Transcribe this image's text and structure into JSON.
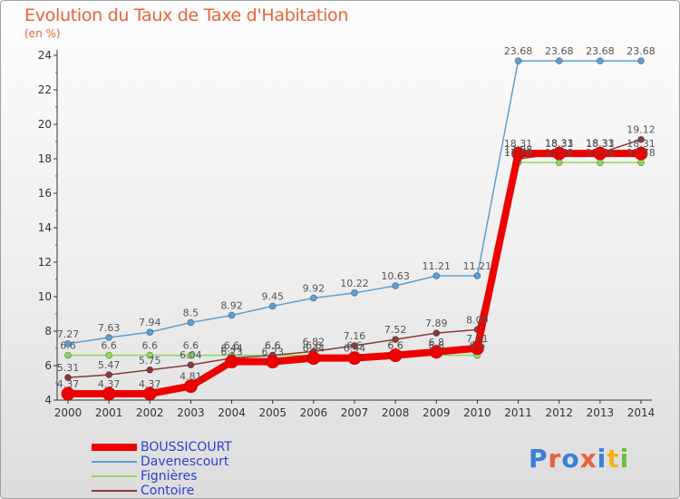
{
  "chart_data": {
    "type": "line",
    "title": "Evolution du Taux de Taxe d'Habitation",
    "unit_label": "(en %)",
    "xlabel": "",
    "ylabel": "",
    "x": [
      "2000",
      "2001",
      "2002",
      "2003",
      "2004",
      "2005",
      "2006",
      "2007",
      "2008",
      "2009",
      "2010",
      "2011",
      "2012",
      "2013",
      "2014"
    ],
    "ylim": [
      4,
      24
    ],
    "yticks": [
      "4",
      "6",
      "8",
      "10",
      "12",
      "14",
      "16",
      "18",
      "20",
      "22",
      "24"
    ],
    "grid": false,
    "legend_position": "bottom-left",
    "series": [
      {
        "name": "BOUSSICOURT",
        "color": "#ee0000",
        "values": [
          4.37,
          4.37,
          4.37,
          4.81,
          6.23,
          6.23,
          6.44,
          6.44,
          6.6,
          6.8,
          7.01,
          18.31,
          18.31,
          18.31,
          18.31
        ],
        "labels": [
          "4.37",
          "4.37",
          "4.37",
          "4.81",
          "6.23",
          "6.23",
          "6.44",
          "6.44",
          "6.6",
          "6.8",
          "7.01",
          "18.31",
          "18.31",
          "18.31",
          "18.31"
        ]
      },
      {
        "name": "Davenescourt",
        "color": "#5b9fd6",
        "values": [
          7.27,
          7.63,
          7.94,
          8.5,
          8.92,
          9.45,
          9.92,
          10.22,
          10.63,
          11.21,
          11.21,
          23.68,
          23.68,
          23.68,
          23.68
        ],
        "labels": [
          "7.27",
          "7.63",
          "7.94",
          "8.5",
          "8.92",
          "9.45",
          "9.92",
          "10.22",
          "10.63",
          "11.21",
          "11.21",
          "23.68",
          "23.68",
          "23.68",
          "23.68"
        ]
      },
      {
        "name": "Fignières",
        "color": "#8ed858",
        "values": [
          6.6,
          6.6,
          6.6,
          6.6,
          6.6,
          6.6,
          6.6,
          6.6,
          6.6,
          6.6,
          6.6,
          17.78,
          17.78,
          17.78,
          17.78
        ],
        "labels": [
          "6.6",
          "6.6",
          "6.6",
          "6.6",
          "6.6",
          "6.6",
          "6.6",
          "6.6",
          "6.6",
          "6.6",
          "6.6",
          "17.78",
          "17.78",
          "17.78",
          "17.78"
        ]
      },
      {
        "name": "Contoire",
        "color": "#8b3a3a",
        "values": [
          5.31,
          5.47,
          5.75,
          6.04,
          6.44,
          6.6,
          6.82,
          7.16,
          7.52,
          7.89,
          8.09,
          17.98,
          18.33,
          18.33,
          19.12
        ],
        "labels": [
          "5.31",
          "5.47",
          "5.75",
          "6.04",
          "6.44",
          "6.6",
          "6.82",
          "7.16",
          "7.52",
          "7.89",
          "8.09",
          "17.98",
          "18.33",
          "18.33",
          "19.12"
        ]
      }
    ]
  },
  "logo": {
    "text": "Proxiti",
    "letter_colors": [
      "#3a7fd6",
      "#e8633a",
      "#3a7fd6",
      "#e8633a",
      "#3a7fd6",
      "#f2b31a",
      "#6cbf3a"
    ]
  }
}
